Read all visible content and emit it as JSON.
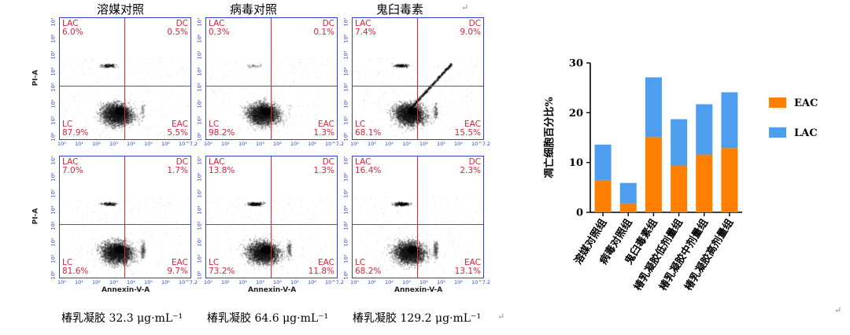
{
  "flow": {
    "col_headers": [
      "溶媒对照",
      "病毒对照",
      "鬼臼毒素"
    ],
    "captions": [
      "椿乳凝胶 32.3 μg·mL⁻¹",
      "椿乳凝胶 64.6 μg·mL⁻¹",
      "椿乳凝胶 129.2 μg·mL⁻¹"
    ],
    "y_axis_label": "PI-A",
    "x_axis_label": "Annexin-V-A",
    "y_ticks": [
      "10⁷",
      "10⁶",
      "10⁵",
      "10⁴",
      "10³",
      "10²",
      "10¹",
      "10⁰"
    ],
    "x_ticks": [
      "10⁰",
      "10¹",
      "10²",
      "10³",
      "10⁴",
      "10⁵",
      "10⁶",
      "10^7.2"
    ],
    "quadrant_names": {
      "ul": "LAC",
      "ur": "DC",
      "ll": "LC",
      "lr": "EAC"
    },
    "panels": [
      {
        "ul": "6.0%",
        "ur": "0.5%",
        "ll": "87.9%",
        "lr": "5.5%"
      },
      {
        "ul": "0.3%",
        "ur": "0.1%",
        "ll": "98.2%",
        "lr": "1.3%"
      },
      {
        "ul": "7.4%",
        "ur": "9.0%",
        "ll": "68.1%",
        "lr": "15.5%"
      },
      {
        "ul": "7.0%",
        "ur": "1.7%",
        "ll": "81.6%",
        "lr": "9.7%"
      },
      {
        "ul": "13.8%",
        "ur": "1.3%",
        "ll": "73.2%",
        "lr": "11.8%"
      },
      {
        "ul": "16.4%",
        "ur": "2.3%",
        "ll": "68.2%",
        "lr": "13.1%"
      }
    ],
    "quadrant_color": "#d82636",
    "frame_color": "#2f3fd6"
  },
  "chart_data": {
    "type": "bar",
    "stacked": true,
    "categories": [
      "溶媒对照组",
      "病毒对照组",
      "鬼臼毒素组",
      "椿乳凝胶低剂量组",
      "椿乳凝胶中剂量组",
      "椿乳凝胶高剂量组"
    ],
    "series": [
      {
        "name": "EAC",
        "color": "#ff7f00",
        "values": [
          6.5,
          1.8,
          15.1,
          9.4,
          11.6,
          12.9
        ]
      },
      {
        "name": "LAC",
        "color": "#4d9eef",
        "values": [
          7.1,
          4.1,
          12.0,
          9.3,
          10.1,
          11.2
        ]
      }
    ],
    "ylabel": "凋亡细胞百分比%",
    "ylim": [
      0,
      30
    ],
    "yticks": [
      0,
      10,
      20,
      30
    ],
    "legend": "right",
    "grid": false
  }
}
